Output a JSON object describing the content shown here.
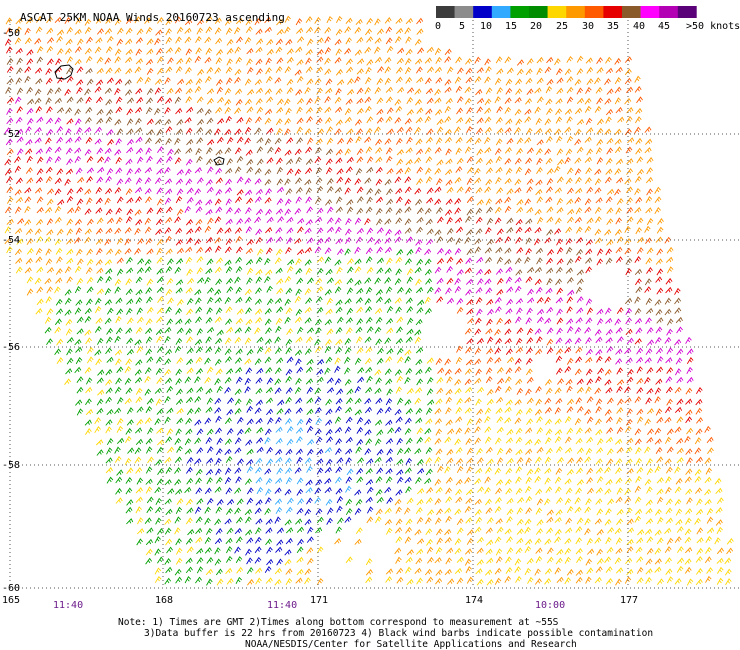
{
  "title": "ASCAT 25KM NOAA Winds 20160723 ascending",
  "legend": {
    "ticks": [
      "0",
      "5",
      "10",
      "15",
      "20",
      "25",
      "30",
      "35",
      "40",
      "45",
      ">50 knots"
    ],
    "colors": [
      "#3c3c3c",
      "#8c8c8c",
      "#0000c8",
      "#32aaff",
      "#00a000",
      "#008c00",
      "#ffd700",
      "#ff9900",
      "#ff5a00",
      "#e60000",
      "#8b5a2b",
      "#ff00ff",
      "#b400b4",
      "#5a0078"
    ]
  },
  "grid": {
    "lon_labels": [
      "165",
      "168",
      "171",
      "174",
      "177"
    ],
    "lat_labels": [
      "-50",
      "-52",
      "-54",
      "-56",
      "-58",
      "-60"
    ]
  },
  "time_labels": [
    "11:40",
    "11:40",
    "10:00"
  ],
  "notes": [
    "Note: 1) Times are GMT 2)Times along bottom correspond to measurement at ~55S",
    "3)Data buffer is 22 hrs from 20160723 4) Black wind barbs indicate possible contamination",
    "NOAA/NESDIS/Center for Satellite Applications and Research"
  ]
}
